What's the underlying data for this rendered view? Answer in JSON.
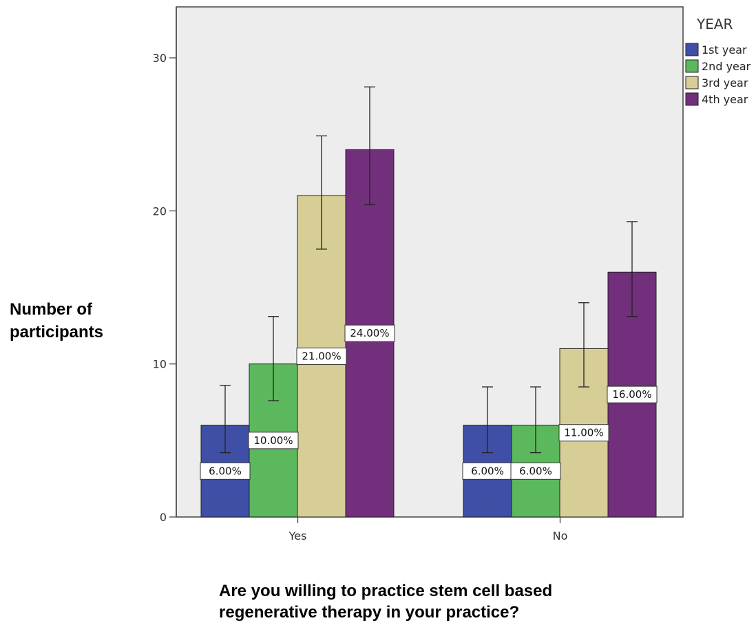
{
  "chart_data": {
    "type": "bar",
    "categories": [
      "Yes",
      "No"
    ],
    "series": [
      {
        "name": "1st year",
        "color": "#3f4fa6",
        "values": [
          6,
          6
        ],
        "labels": [
          "6.00%",
          "6.00%"
        ],
        "error_low": [
          4.2,
          4.2
        ],
        "error_high": [
          8.6,
          8.5
        ]
      },
      {
        "name": "2nd year",
        "color": "#5cb85c",
        "values": [
          10,
          6
        ],
        "labels": [
          "10.00%",
          "6.00%"
        ],
        "error_low": [
          7.6,
          4.2
        ],
        "error_high": [
          13.1,
          8.5
        ]
      },
      {
        "name": "3rd year",
        "color": "#d6cd97",
        "values": [
          21,
          11
        ],
        "labels": [
          "21.00%",
          "11.00%"
        ],
        "error_low": [
          17.5,
          8.5
        ],
        "error_high": [
          24.9,
          14.0
        ]
      },
      {
        "name": "4th year",
        "color": "#722f7c",
        "values": [
          24,
          16
        ],
        "labels": [
          "24.00%",
          "16.00%"
        ],
        "error_low": [
          20.4,
          13.1
        ],
        "error_high": [
          28.1,
          19.3
        ]
      }
    ],
    "legend_title": "YEAR",
    "legend_position": "right",
    "ylabel": "Number of\nparticipants",
    "xlabel": "Are you willing to practice stem cell based\nregenerative therapy in your practice?",
    "ylim": [
      0,
      33
    ],
    "yticks": [
      0,
      10,
      20,
      30
    ],
    "plot_background": "#ededed",
    "grid": false
  }
}
